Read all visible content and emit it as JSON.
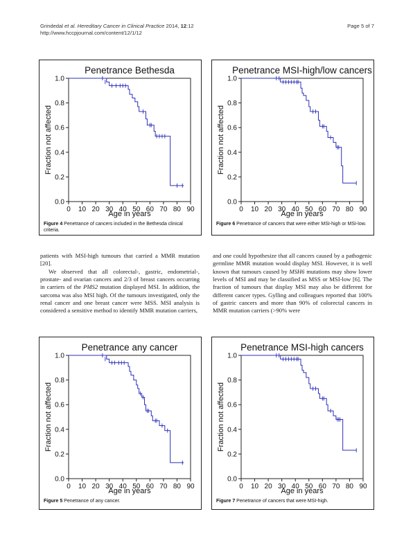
{
  "header": {
    "citation_authors": "Grindedal ",
    "citation_etal": "et al.",
    "citation_journal": " Hereditary Cancer in Clinical Practice",
    "citation_year": " 2014, ",
    "citation_volume": "12",
    "citation_issue": ":12",
    "url": "http://www.hccpjournal.com/content/12/1/12",
    "page": "Page 5 of 7"
  },
  "figures": [
    {
      "id": "fig4",
      "caption_label": "Figure 4",
      "caption_text": " Penetrance of cancers included in the Bethesda clinical criteria.",
      "chart_data": {
        "type": "line",
        "title": "Penetrance Bethesda",
        "xlabel": "Age in years",
        "ylabel": "Fraction not affected",
        "xlim": [
          0,
          90
        ],
        "ylim": [
          0,
          1
        ],
        "x_ticks": [
          "0",
          "10",
          "20",
          "30",
          "40",
          "50",
          "60",
          "70",
          "80",
          "90"
        ],
        "y_ticks": [
          "0.0",
          "0.2",
          "0.4",
          "0.6",
          "0.8",
          "1.0"
        ],
        "grid": false,
        "series": [
          {
            "step": [
              [
                0,
                1.0
              ],
              [
                27,
                1.0
              ],
              [
                28,
                0.97
              ],
              [
                30,
                0.94
              ],
              [
                43,
                0.94
              ],
              [
                44,
                0.91
              ],
              [
                45,
                0.87
              ],
              [
                47,
                0.84
              ],
              [
                49,
                0.81
              ],
              [
                51,
                0.77
              ],
              [
                52,
                0.73
              ],
              [
                56,
                0.73
              ],
              [
                57,
                0.67
              ],
              [
                58,
                0.62
              ],
              [
                62,
                0.62
              ],
              [
                63,
                0.57
              ],
              [
                64,
                0.53
              ],
              [
                72,
                0.53
              ],
              [
                74,
                0.53
              ],
              [
                75,
                0.13
              ],
              [
                85,
                0.13
              ]
            ],
            "censored": [
              [
                25,
                1.0
              ],
              [
                27,
                0.97
              ],
              [
                32,
                0.94
              ],
              [
                35,
                0.94
              ],
              [
                38,
                0.94
              ],
              [
                40,
                0.94
              ],
              [
                42,
                0.94
              ],
              [
                55,
                0.73
              ],
              [
                60,
                0.62
              ],
              [
                61,
                0.62
              ],
              [
                65,
                0.53
              ],
              [
                67,
                0.53
              ],
              [
                69,
                0.53
              ],
              [
                71,
                0.53
              ],
              [
                80,
                0.13
              ],
              [
                84,
                0.13
              ]
            ]
          }
        ]
      }
    },
    {
      "id": "fig6",
      "caption_label": "Figure 6",
      "caption_text": " Penetrance of cancers that were either MSI-high or MSI-low.",
      "chart_data": {
        "type": "line",
        "title": "Penetrance MSI-high/low cancers",
        "xlabel": "Age in years",
        "ylabel": "Fraction not affected",
        "xlim": [
          0,
          90
        ],
        "ylim": [
          0,
          1
        ],
        "x_ticks": [
          "0",
          "10",
          "20",
          "30",
          "40",
          "50",
          "60",
          "70",
          "80",
          "90"
        ],
        "y_ticks": [
          "0.0",
          "0.2",
          "0.4",
          "0.6",
          "0.8",
          "1.0"
        ],
        "grid": false,
        "series": [
          {
            "step": [
              [
                0,
                1.0
              ],
              [
                28,
                1.0
              ],
              [
                29,
                0.97
              ],
              [
                43,
                0.97
              ],
              [
                44,
                0.92
              ],
              [
                45,
                0.88
              ],
              [
                46,
                0.86
              ],
              [
                48,
                0.82
              ],
              [
                50,
                0.77
              ],
              [
                51,
                0.73
              ],
              [
                56,
                0.73
              ],
              [
                57,
                0.66
              ],
              [
                58,
                0.61
              ],
              [
                62,
                0.61
              ],
              [
                63,
                0.57
              ],
              [
                64,
                0.52
              ],
              [
                67,
                0.52
              ],
              [
                68,
                0.48
              ],
              [
                70,
                0.44
              ],
              [
                73,
                0.44
              ],
              [
                74,
                0.29
              ],
              [
                75,
                0.15
              ],
              [
                85,
                0.15
              ]
            ],
            "censored": [
              [
                26,
                1.0
              ],
              [
                28,
                1.0
              ],
              [
                31,
                0.97
              ],
              [
                33,
                0.97
              ],
              [
                35,
                0.97
              ],
              [
                37,
                0.97
              ],
              [
                39,
                0.97
              ],
              [
                41,
                0.97
              ],
              [
                42,
                0.97
              ],
              [
                53,
                0.73
              ],
              [
                55,
                0.73
              ],
              [
                60,
                0.61
              ],
              [
                61,
                0.61
              ],
              [
                66,
                0.52
              ],
              [
                71,
                0.44
              ],
              [
                72,
                0.44
              ],
              [
                85,
                0.15
              ]
            ]
          }
        ]
      }
    },
    {
      "id": "fig5",
      "caption_label": "Figure 5",
      "caption_text": " Penetrance of any cancer.",
      "chart_data": {
        "type": "line",
        "title": "Penetrance any cancer",
        "xlabel": "Age in years",
        "ylabel": "Fraction not affected",
        "xlim": [
          0,
          90
        ],
        "ylim": [
          0,
          1
        ],
        "x_ticks": [
          "0",
          "10",
          "20",
          "30",
          "40",
          "50",
          "60",
          "70",
          "80",
          "90"
        ],
        "y_ticks": [
          "0.0",
          "0.2",
          "0.4",
          "0.6",
          "0.8",
          "1.0"
        ],
        "grid": false,
        "series": [
          {
            "step": [
              [
                0,
                1.0
              ],
              [
                27,
                1.0
              ],
              [
                28,
                0.97
              ],
              [
                30,
                0.94
              ],
              [
                43,
                0.94
              ],
              [
                44,
                0.91
              ],
              [
                45,
                0.87
              ],
              [
                46,
                0.84
              ],
              [
                48,
                0.8
              ],
              [
                50,
                0.76
              ],
              [
                51,
                0.73
              ],
              [
                52,
                0.69
              ],
              [
                54,
                0.66
              ],
              [
                56,
                0.6
              ],
              [
                57,
                0.55
              ],
              [
                60,
                0.55
              ],
              [
                61,
                0.51
              ],
              [
                62,
                0.47
              ],
              [
                66,
                0.47
              ],
              [
                67,
                0.43
              ],
              [
                71,
                0.39
              ],
              [
                74,
                0.39
              ],
              [
                75,
                0.13
              ],
              [
                85,
                0.13
              ]
            ],
            "censored": [
              [
                25,
                1.0
              ],
              [
                27,
                0.97
              ],
              [
                32,
                0.94
              ],
              [
                34,
                0.94
              ],
              [
                37,
                0.94
              ],
              [
                39,
                0.94
              ],
              [
                41,
                0.94
              ],
              [
                53,
                0.69
              ],
              [
                55,
                0.66
              ],
              [
                58,
                0.55
              ],
              [
                59,
                0.55
              ],
              [
                64,
                0.47
              ],
              [
                65,
                0.47
              ],
              [
                69,
                0.43
              ],
              [
                73,
                0.39
              ],
              [
                84,
                0.13
              ]
            ]
          }
        ]
      }
    },
    {
      "id": "fig7",
      "caption_label": "Figure 7",
      "caption_text": " Penetrance of cancers that were MSI-high.",
      "chart_data": {
        "type": "line",
        "title": "Penetrance MSI-high cancers",
        "xlabel": "Age in years",
        "ylabel": "Fraction not affected",
        "xlim": [
          0,
          90
        ],
        "ylim": [
          0,
          1
        ],
        "x_ticks": [
          "0",
          "10",
          "20",
          "30",
          "40",
          "50",
          "60",
          "70",
          "80",
          "90"
        ],
        "y_ticks": [
          "0.0",
          "0.2",
          "0.4",
          "0.6",
          "0.8",
          "1.0"
        ],
        "grid": false,
        "series": [
          {
            "step": [
              [
                0,
                1.0
              ],
              [
                28,
                1.0
              ],
              [
                29,
                0.97
              ],
              [
                43,
                0.97
              ],
              [
                44,
                0.92
              ],
              [
                45,
                0.88
              ],
              [
                46,
                0.86
              ],
              [
                48,
                0.82
              ],
              [
                50,
                0.77
              ],
              [
                51,
                0.73
              ],
              [
                56,
                0.73
              ],
              [
                57,
                0.69
              ],
              [
                58,
                0.65
              ],
              [
                62,
                0.65
              ],
              [
                63,
                0.6
              ],
              [
                64,
                0.55
              ],
              [
                67,
                0.55
              ],
              [
                68,
                0.51
              ],
              [
                70,
                0.48
              ],
              [
                74,
                0.48
              ],
              [
                75,
                0.23
              ],
              [
                85,
                0.23
              ]
            ],
            "censored": [
              [
                26,
                1.0
              ],
              [
                28,
                1.0
              ],
              [
                31,
                0.97
              ],
              [
                33,
                0.97
              ],
              [
                35,
                0.97
              ],
              [
                37,
                0.97
              ],
              [
                39,
                0.97
              ],
              [
                41,
                0.97
              ],
              [
                42,
                0.97
              ],
              [
                53,
                0.73
              ],
              [
                55,
                0.73
              ],
              [
                60,
                0.65
              ],
              [
                61,
                0.65
              ],
              [
                66,
                0.55
              ],
              [
                71,
                0.48
              ],
              [
                72,
                0.48
              ],
              [
                73,
                0.48
              ],
              [
                85,
                0.23
              ]
            ]
          }
        ]
      }
    }
  ],
  "body": {
    "left": {
      "p1": "patients with MSI-high tumours that carried a MMR mutation [20].",
      "p2_a": "We observed that all colorectal-, gastric, endometrial-, prostate- and ovarian cancers and 2/3 of breast cancers occurring in carriers of the ",
      "p2_gene": "PMS2",
      "p2_b": " mutation displayed MSI. In addition, the sarcoma was also MSI high. Of the tumours investigated, only the renal cancer and one breast cancer were MSS. MSI analysis is considered a sensitive method to identify MMR mutation carriers,"
    },
    "right": {
      "p1_a": "and one could hypothesize that all cancers caused by a pathogenic germline MMR mutation would display MSI. However, it is well known that tumours caused by ",
      "p1_gene": "MSH6",
      "p1_b": " mutations may show lower levels of MSI and may be classified as MSS or MSI-low [6]. The fraction of tumours that display MSI may also be different for different cancer types. Gylling and colleagues reported that 100% of gastric cancers and more than 90% of colorectal cancers in MMR mutation carriers (>90% were"
    }
  }
}
